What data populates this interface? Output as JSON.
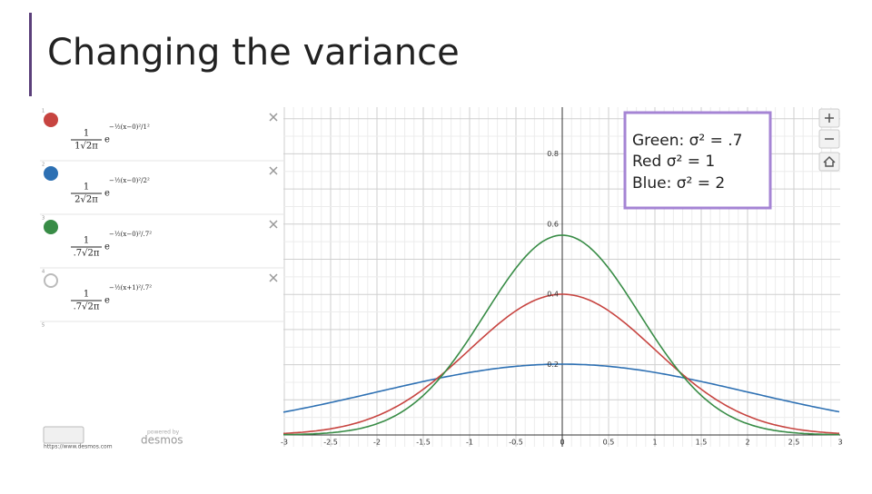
{
  "header": {
    "title": "Changing the variance"
  },
  "expressions": [
    {
      "index": "1",
      "numerator": "1",
      "denominator": "1√2π",
      "exponent": "−½(x−0)²/1²"
    },
    {
      "index": "2",
      "numerator": "1",
      "denominator": "2√2π",
      "exponent": "−½(x−0)²/2²"
    },
    {
      "index": "3",
      "numerator": "1",
      "denominator": ".7√2π",
      "exponent": "−½(x−0)²/.7²"
    },
    {
      "index": "4",
      "numerator": "1",
      "denominator": ".7√2π",
      "exponent": "−½(x+1)²/.7²"
    }
  ],
  "next_index": "5",
  "legend": [
    "Green: σ² = .7",
    "Red σ² = 1",
    "Blue: σ² = 2"
  ],
  "graph": {
    "x_ticks": [
      -3,
      -2.5,
      -2,
      -1.5,
      -1,
      -0.5,
      0,
      0.5,
      1,
      1.5,
      2,
      2.5,
      3
    ],
    "y_ticks": [
      0.2,
      0.4,
      0.6,
      0.8
    ]
  },
  "footer": {
    "url": "https://www.desmos.com",
    "powered": "powered by",
    "brand": "desmos"
  }
}
